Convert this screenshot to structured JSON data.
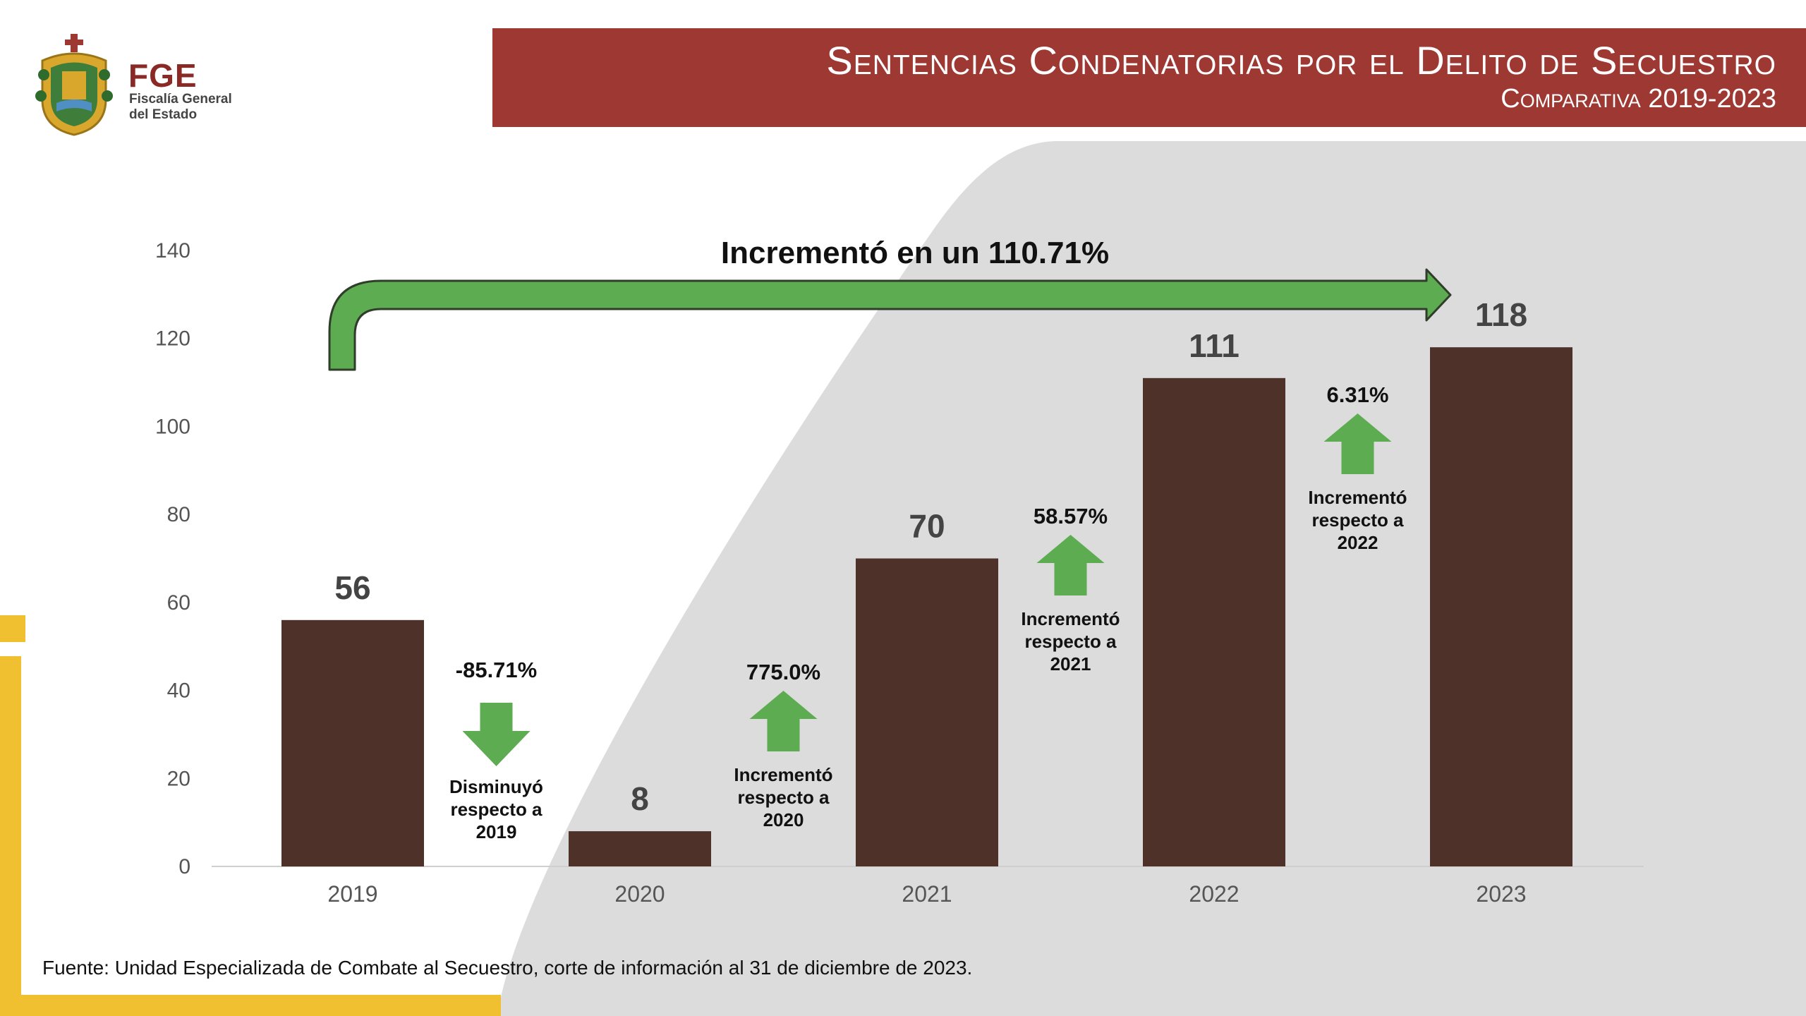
{
  "header": {
    "logo_name": "FGE",
    "logo_subtitle_line1": "Fiscalía General",
    "logo_subtitle_line2": "del Estado",
    "title": "Sentencias Condenatorias por el Delito de Secuestro",
    "subtitle": "Comparativa 2019-2023"
  },
  "colors": {
    "banner": "#9e3833",
    "bar": "#4e3129",
    "arrow_green": "#5eac52",
    "panel_gray": "#dcdcdc",
    "accent_yellow": "#f0c030"
  },
  "chart_data": {
    "type": "bar",
    "categories": [
      "2019",
      "2020",
      "2021",
      "2022",
      "2023"
    ],
    "values": [
      56,
      8,
      70,
      111,
      118
    ],
    "ylim": [
      0,
      140
    ],
    "yticks": [
      0,
      20,
      40,
      60,
      80,
      100,
      120,
      140
    ],
    "value_labels": [
      "56",
      "8",
      "70",
      "111",
      "118"
    ],
    "grid": false,
    "annotations": [
      {
        "between": [
          "2019",
          "2020"
        ],
        "percent": "-85.71%",
        "direction": "down",
        "line1": "Disminuyó",
        "line2": "respecto a",
        "line3": "2019"
      },
      {
        "between": [
          "2020",
          "2021"
        ],
        "percent": "775.0%",
        "direction": "up",
        "line1": "Incrementó",
        "line2": "respecto a",
        "line3": "2020"
      },
      {
        "between": [
          "2021",
          "2022"
        ],
        "percent": "58.57%",
        "direction": "up",
        "line1": "Incrementó",
        "line2": "respecto a",
        "line3": "2021"
      },
      {
        "between": [
          "2022",
          "2023"
        ],
        "percent": "6.31%",
        "direction": "up",
        "line1": "Incrementó",
        "line2": "respecto a",
        "line3": "2022"
      }
    ],
    "overall": {
      "text": "Incrementó en un 110.71%",
      "from": "2019",
      "to": "2023"
    }
  },
  "footer": {
    "source": "Fuente: Unidad Especializada de Combate al Secuestro, corte de información al 31 de diciembre de 2023."
  }
}
